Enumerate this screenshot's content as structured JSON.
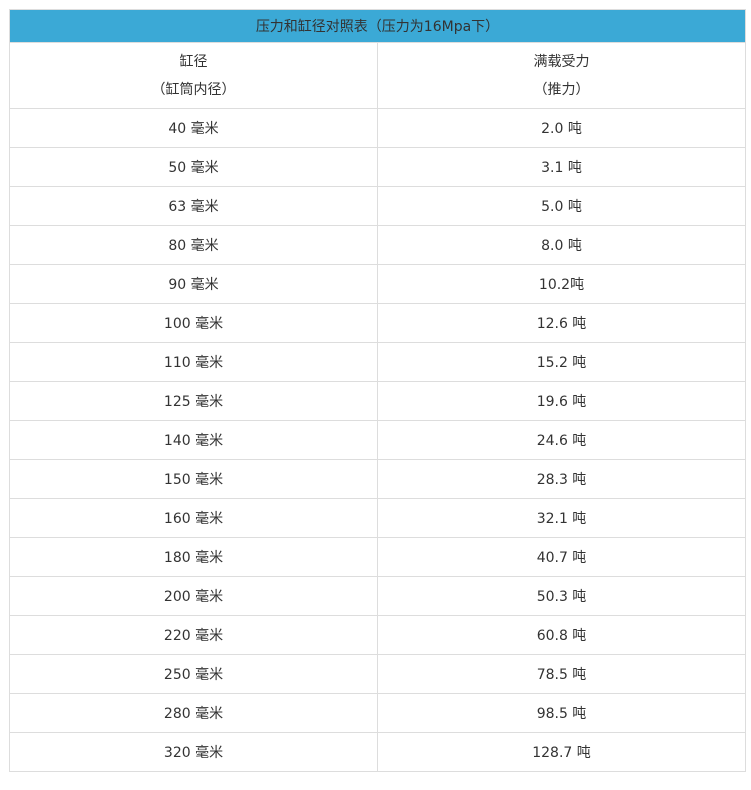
{
  "table": {
    "title": "压力和缸径对照表（压力为16Mpa下）",
    "header_color": "#3ba9d6",
    "col1": {
      "line1": "缸径",
      "line2": "（缸筒内径）"
    },
    "col2": {
      "line1": "满载受力",
      "line2": "（推力）"
    },
    "rows": [
      [
        "40 毫米",
        "2.0 吨"
      ],
      [
        "50 毫米",
        "3.1 吨"
      ],
      [
        "63 毫米",
        "5.0 吨"
      ],
      [
        "80 毫米",
        "8.0 吨"
      ],
      [
        "90 毫米",
        "10.2吨"
      ],
      [
        "100 毫米",
        "12.6 吨"
      ],
      [
        "110 毫米",
        "15.2 吨"
      ],
      [
        "125 毫米",
        "19.6 吨"
      ],
      [
        "140 毫米",
        "24.6 吨"
      ],
      [
        "150 毫米",
        "28.3 吨"
      ],
      [
        "160 毫米",
        "32.1 吨"
      ],
      [
        "180 毫米",
        "40.7 吨"
      ],
      [
        "200 毫米",
        "50.3 吨"
      ],
      [
        "220 毫米",
        "60.8 吨"
      ],
      [
        "250 毫米",
        "78.5 吨"
      ],
      [
        "280 毫米",
        "98.5 吨"
      ],
      [
        "320 毫米",
        "128.7 吨"
      ]
    ]
  }
}
